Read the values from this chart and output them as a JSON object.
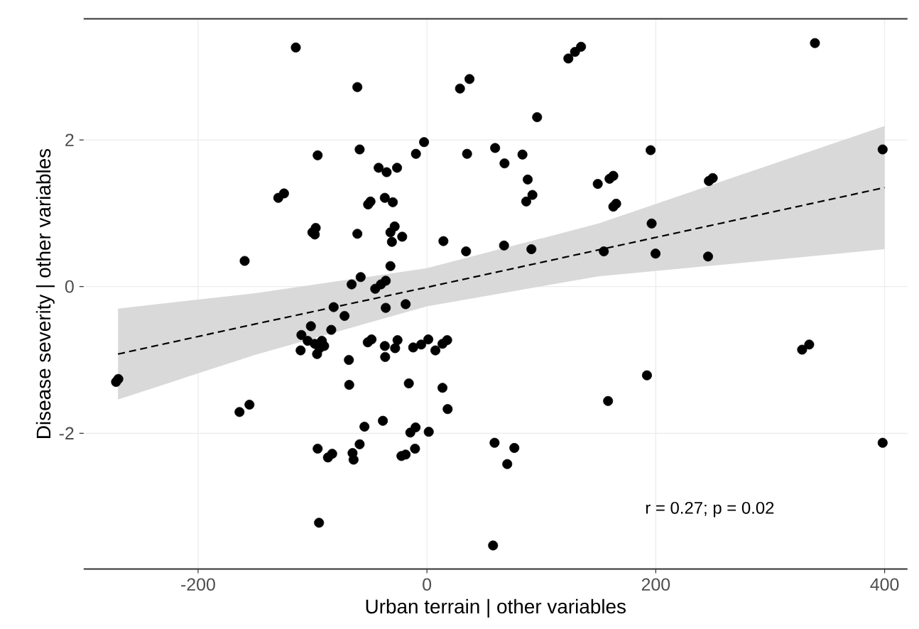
{
  "chart_data": {
    "type": "scatter",
    "xlabel": "Urban terrain | other variables",
    "ylabel": "Disease severity | other variables",
    "xlim": [
      -300,
      420
    ],
    "ylim": [
      -3.85,
      3.65
    ],
    "xticks": [
      -200,
      0,
      200,
      400
    ],
    "yticks": [
      -2,
      0,
      2
    ],
    "grid": true,
    "annotations": [
      "r = 0.27; p = 0.02"
    ],
    "series": [
      {
        "color": "#000000",
        "marker": "circle",
        "x": [
          -114.6,
          -60.8,
          28.9,
          37.2,
          -95.5,
          -58.8,
          -42.2,
          -35.2,
          -26.1,
          -9.6,
          -2.5,
          35.1,
          59.6,
          -129.9,
          -124.9,
          -51.4,
          -49.3,
          -36.8,
          -29.8,
          -100.1,
          -97.2,
          -98.0,
          -60.8,
          -31.9,
          -28.2,
          -30.6,
          -21.6,
          14.4,
          34.2,
          -159.3,
          -31.9,
          -65.8,
          -57.9,
          -45.2,
          -40.2,
          -36.0,
          123.6,
          129.4,
          134.7,
          339.1,
          96.3,
          67.8,
          83.5,
          88.1,
          86.8,
          92.2,
          195.5,
          149.3,
          159.6,
          162.9,
          162.9,
          165.4,
          246.4,
          249.8,
          398.3,
          67.4,
          91.3,
          154.6,
          196.4,
          199.8,
          245.7,
          -271.7,
          -269.7,
          -163.8,
          -155.1,
          -81.5,
          -72.0,
          -36.0,
          -18.6,
          -101.4,
          -109.7,
          -83.6,
          -104.2,
          -98.0,
          -93.9,
          -89.8,
          -110.4,
          -96.0,
          -91.8,
          -68.2,
          -51.7,
          -48.4,
          -36.8,
          -27.8,
          -25.7,
          -36.5,
          -12.0,
          -5.0,
          1.2,
          7.4,
          13.6,
          17.7,
          -67.9,
          -15.8,
          13.6,
          18.1,
          -54.6,
          -38.5,
          -14.5,
          -9.9,
          1.6,
          -95.5,
          -86.5,
          -82.8,
          -65.0,
          -64.1,
          -58.8,
          -22.3,
          -18.6,
          -10.4,
          -94.3,
          59.1,
          57.8,
          327.9,
          334.1,
          192.3,
          158.3,
          76.4,
          70.2,
          398.3
        ],
        "values": [
          3.26,
          2.72,
          2.7,
          2.83,
          1.79,
          1.87,
          1.62,
          1.56,
          1.62,
          1.81,
          1.97,
          1.81,
          1.89,
          1.21,
          1.27,
          1.12,
          1.16,
          1.21,
          1.15,
          0.74,
          0.8,
          0.71,
          0.72,
          0.74,
          0.82,
          0.61,
          0.68,
          0.62,
          0.48,
          0.35,
          0.28,
          0.03,
          0.13,
          -0.03,
          0.03,
          0.08,
          3.11,
          3.2,
          3.27,
          3.32,
          2.31,
          1.68,
          1.8,
          1.46,
          1.16,
          1.25,
          1.86,
          1.4,
          1.47,
          1.51,
          1.09,
          1.13,
          1.44,
          1.48,
          1.87,
          0.56,
          0.51,
          0.48,
          0.86,
          0.45,
          0.41,
          -1.3,
          -1.26,
          -1.71,
          -1.61,
          -0.28,
          -0.4,
          -0.29,
          -0.24,
          -0.54,
          -0.66,
          -0.59,
          -0.74,
          -0.78,
          -0.84,
          -0.81,
          -0.87,
          -0.92,
          -0.74,
          -1.0,
          -0.76,
          -0.72,
          -0.81,
          -0.84,
          -0.73,
          -0.96,
          -0.83,
          -0.79,
          -0.72,
          -0.87,
          -0.78,
          -0.73,
          -1.34,
          -1.32,
          -1.38,
          -1.67,
          -1.91,
          -1.83,
          -1.99,
          -1.92,
          -1.98,
          -2.21,
          -2.33,
          -2.28,
          -2.27,
          -2.36,
          -2.15,
          -2.31,
          -2.29,
          -2.21,
          -3.22,
          -2.13,
          -3.53,
          -0.86,
          -0.79,
          -1.21,
          -1.56,
          -2.2,
          -2.42,
          -2.13
        ]
      },
      {
        "type": "line",
        "color": "#000000",
        "line_style": "dashed",
        "marker": "none",
        "x": [
          -270,
          -150,
          0,
          150,
          300,
          400
        ],
        "values": [
          -0.92,
          -0.51,
          -0.01,
          0.5,
          1.01,
          1.35
        ],
        "lower": [
          -1.54,
          -0.93,
          -0.27,
          0.14,
          0.36,
          0.51
        ],
        "upper": [
          -0.3,
          -0.09,
          0.25,
          0.86,
          1.66,
          2.19
        ]
      }
    ]
  }
}
